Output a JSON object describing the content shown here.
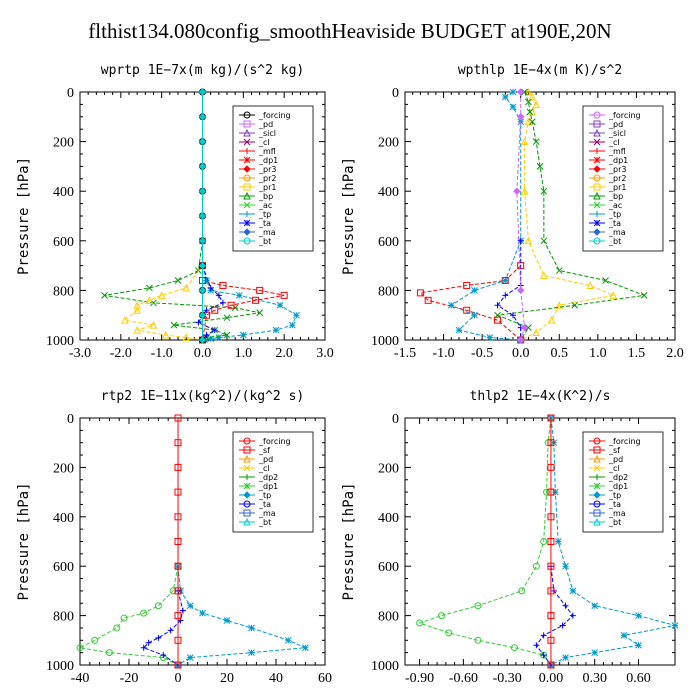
{
  "figure_title": "flthist134.080config_smoothHeaviside  BUDGET at190E,20N",
  "colors": {
    "black": "#000000",
    "violet": "#cc66ff",
    "purple": "#7f3fbf",
    "magenta": "#990066",
    "red": "#ff0000",
    "orange": "#ff9900",
    "yellow": "#ffcc00",
    "green": "#009900",
    "lightgreen": "#33cc33",
    "blue": "#0000ff",
    "teal": "#0099cc",
    "cyan": "#00cccc",
    "steel": "#3366cc",
    "darkred": "#cc0033",
    "lime": "#66cc00"
  },
  "chart_data": [
    {
      "id": "wprtp",
      "type": "line",
      "title": "wprtp  1E−7x(m kg)/(s^2 kg)",
      "ylabel": "Pressure [hPa]",
      "xlim": [
        -3.0,
        3.0
      ],
      "ylim": [
        1000,
        0
      ],
      "xticks": [
        "-3.0",
        "-2.0",
        "-1.0",
        "0.0",
        "1.0",
        "2.0",
        "3.0"
      ],
      "xtick_values": [
        -3,
        -2,
        -1,
        0,
        1,
        2,
        3
      ],
      "yticks": [
        "0",
        "200",
        "400",
        "600",
        "800",
        "1000"
      ],
      "ytick_values": [
        0,
        200,
        400,
        600,
        800,
        1000
      ],
      "legend": [
        "_forcing",
        "_pd",
        "_sicl",
        "_cl",
        "_mfl",
        "_dp1",
        "_pr3",
        "_pr2",
        "_pr1",
        "_bp",
        "_ac",
        "_tp",
        "_ta",
        "_ma",
        "_bt"
      ],
      "legend_colors": [
        "black",
        "violet",
        "purple",
        "magenta",
        "red",
        "red",
        "red",
        "orange",
        "yellow",
        "green",
        "lightgreen",
        "teal",
        "blue",
        "steel",
        "cyan"
      ],
      "series": [
        {
          "name": "_tp",
          "color": "teal",
          "marker": "star",
          "x": [
            0,
            0,
            0.1,
            0.2,
            0.9,
            1.9,
            2.3,
            2.2,
            1.8,
            1.0,
            0.4,
            0.2,
            0.05,
            0
          ],
          "y": [
            600,
            700,
            760,
            800,
            820,
            860,
            900,
            940,
            960,
            980,
            990,
            995,
            998,
            1000
          ]
        },
        {
          "name": "_bp",
          "color": "green",
          "marker": "x",
          "x": [
            0,
            -0.1,
            -0.6,
            -1.3,
            -2.4,
            -1.2,
            0.8,
            1.4,
            0.6,
            -0.7,
            0.3,
            0.6,
            0.1,
            0
          ],
          "y": [
            600,
            720,
            760,
            790,
            820,
            850,
            870,
            890,
            910,
            940,
            960,
            980,
            990,
            1000
          ]
        },
        {
          "name": "_pr1",
          "color": "yellow",
          "marker": "tri",
          "x": [
            0,
            -0.4,
            -1.0,
            -1.3,
            -1.6,
            -1.6,
            -1.9,
            -1.2,
            -1.6,
            -0.9,
            -0.4,
            0
          ],
          "y": [
            700,
            790,
            820,
            840,
            860,
            880,
            920,
            940,
            960,
            980,
            990,
            1000
          ]
        },
        {
          "name": "_pr3",
          "color": "red",
          "marker": "sq",
          "x": [
            0,
            0,
            0.5,
            1.4,
            2.0,
            1.3,
            0.7,
            0.3,
            0.1,
            0
          ],
          "y": [
            700,
            760,
            780,
            800,
            820,
            840,
            860,
            880,
            900,
            1000
          ]
        },
        {
          "name": "_ta",
          "color": "blue",
          "marker": "plus",
          "x": [
            0,
            0.2,
            0.4,
            0.5,
            0.1,
            0,
            -0.1,
            0.3,
            0.1,
            0
          ],
          "y": [
            700,
            790,
            820,
            850,
            880,
            900,
            930,
            960,
            980,
            1000
          ]
        },
        {
          "name": "_forcing",
          "color": "black",
          "marker": "circle",
          "x": [
            0,
            0,
            0,
            0,
            0,
            0,
            0,
            0,
            0,
            0,
            0
          ],
          "y": [
            0,
            100,
            200,
            300,
            400,
            500,
            600,
            700,
            800,
            900,
            1000
          ]
        },
        {
          "name": "_bt",
          "color": "cyan",
          "marker": "diamond",
          "x": [
            0,
            0,
            0,
            0,
            0,
            0,
            0,
            0,
            0,
            0,
            0
          ],
          "y": [
            0,
            100,
            200,
            300,
            400,
            500,
            600,
            700,
            800,
            900,
            1000
          ]
        }
      ]
    },
    {
      "id": "wpthlp",
      "type": "line",
      "title": "wpthlp  1E−4x(m K)/s^2",
      "ylabel": "Pressure [hPa]",
      "xlim": [
        -1.5,
        2.0
      ],
      "ylim": [
        1000,
        0
      ],
      "xticks": [
        "-1.5",
        "-1.0",
        "-0.5",
        "0.0",
        "0.5",
        "1.0",
        "1.5",
        "2.0"
      ],
      "xtick_values": [
        -1.5,
        -1.0,
        -0.5,
        0,
        0.5,
        1.0,
        1.5,
        2.0
      ],
      "yticks": [
        "0",
        "200",
        "400",
        "600",
        "800",
        "1000"
      ],
      "ytick_values": [
        0,
        200,
        400,
        600,
        800,
        1000
      ],
      "legend": [
        "_forcing",
        "_pd",
        "_sicl",
        "_cl",
        "_mfl",
        "_dp1",
        "_pr3",
        "_pr2",
        "_pr1",
        "_bp",
        "_ac",
        "_tp",
        "_ta",
        "_ma",
        "_bt"
      ],
      "legend_colors": [
        "violet",
        "purple",
        "purple",
        "magenta",
        "red",
        "red",
        "red",
        "orange",
        "yellow",
        "green",
        "lightgreen",
        "teal",
        "blue",
        "steel",
        "cyan"
      ],
      "series": [
        {
          "name": "_pr1",
          "color": "yellow",
          "marker": "tri",
          "x": [
            0.1,
            0.15,
            0.2,
            0.15,
            0.1,
            0.05,
            0.05,
            0.1,
            0.3,
            0.9,
            1.2,
            0.5,
            0.4,
            0.2,
            0
          ],
          "y": [
            0,
            20,
            50,
            80,
            120,
            200,
            400,
            600,
            740,
            780,
            820,
            860,
            920,
            970,
            1000
          ]
        },
        {
          "name": "_bp",
          "color": "green",
          "marker": "x",
          "x": [
            0.05,
            0.1,
            0.12,
            0.15,
            0.2,
            0.25,
            0.3,
            0.3,
            0.5,
            1.1,
            1.6,
            0.7,
            -0.3,
            0.1,
            0
          ],
          "y": [
            0,
            40,
            80,
            120,
            200,
            300,
            400,
            600,
            720,
            760,
            820,
            860,
            900,
            950,
            1000
          ]
        },
        {
          "name": "_pr3",
          "color": "red",
          "marker": "sq",
          "x": [
            0,
            -0.2,
            -0.7,
            -1.3,
            -1.2,
            -0.7,
            -0.3,
            0
          ],
          "y": [
            700,
            760,
            780,
            810,
            840,
            880,
            920,
            1000
          ]
        },
        {
          "name": "_tp",
          "color": "teal",
          "marker": "star",
          "x": [
            -0.1,
            -0.2,
            -0.1,
            0,
            0,
            -0.2,
            -0.6,
            -0.9,
            -0.6,
            -0.8,
            -0.4,
            0
          ],
          "y": [
            0,
            20,
            60,
            120,
            600,
            760,
            800,
            860,
            900,
            960,
            990,
            1000
          ]
        },
        {
          "name": "_ta",
          "color": "blue",
          "marker": "plus",
          "x": [
            0,
            0,
            -0.2,
            -0.3,
            -0.1,
            0,
            0
          ],
          "y": [
            600,
            780,
            820,
            860,
            900,
            950,
            1000
          ]
        },
        {
          "name": "_pd",
          "color": "violet",
          "marker": "diamond",
          "x": [
            0,
            0,
            -0.05,
            0,
            0.05,
            0
          ],
          "y": [
            0,
            100,
            400,
            800,
            950,
            1000
          ]
        }
      ]
    },
    {
      "id": "rtp2",
      "type": "line",
      "title": "rtp2  1E−11x(kg^2)/(kg^2 s)",
      "ylabel": "Pressure [hPa]",
      "xlim": [
        -40,
        60
      ],
      "ylim": [
        1000,
        0
      ],
      "xticks": [
        "-40",
        "-20",
        "0",
        "20",
        "40",
        "60"
      ],
      "xtick_values": [
        -40,
        -20,
        0,
        20,
        40,
        60
      ],
      "yticks": [
        "0",
        "200",
        "400",
        "600",
        "800",
        "1000"
      ],
      "ytick_values": [
        0,
        200,
        400,
        600,
        800,
        1000
      ],
      "legend": [
        "_forcing",
        "_sf",
        "_pd",
        "_cl",
        "_dp2",
        "_dp1",
        "_tp",
        "_ta",
        "_ma",
        "_bt"
      ],
      "legend_colors": [
        "red",
        "red",
        "orange",
        "yellow",
        "green",
        "lightgreen",
        "teal",
        "blue",
        "steel",
        "cyan"
      ],
      "series": [
        {
          "name": "_dp1",
          "color": "lightgreen",
          "marker": "circle",
          "x": [
            0,
            -2,
            -8,
            -14,
            -22,
            -25,
            -34,
            -40,
            -28,
            -6,
            0
          ],
          "y": [
            600,
            700,
            760,
            790,
            810,
            850,
            900,
            930,
            950,
            970,
            1000
          ]
        },
        {
          "name": "_tp",
          "color": "teal",
          "marker": "star",
          "x": [
            0,
            1,
            5,
            10,
            20,
            30,
            45,
            52,
            30,
            5,
            0
          ],
          "y": [
            600,
            700,
            760,
            790,
            820,
            850,
            900,
            930,
            950,
            970,
            1000
          ]
        },
        {
          "name": "_ta",
          "color": "blue",
          "marker": "plus",
          "x": [
            0,
            2,
            1,
            -3,
            -8,
            -12,
            -14,
            -6,
            0
          ],
          "y": [
            700,
            780,
            820,
            860,
            890,
            910,
            930,
            960,
            1000
          ]
        },
        {
          "name": "_forcing",
          "color": "red",
          "marker": "sq",
          "x": [
            0,
            0,
            0,
            0,
            0,
            0,
            0,
            0,
            0,
            0,
            0
          ],
          "y": [
            0,
            100,
            200,
            300,
            400,
            500,
            600,
            700,
            800,
            900,
            1000
          ]
        }
      ]
    },
    {
      "id": "thlp2",
      "type": "line",
      "title": "thlp2  1E−4x(K^2)/s",
      "ylabel": "Pressure [hPa]",
      "xlim": [
        -1.0,
        0.85
      ],
      "ylim": [
        1000,
        0
      ],
      "xticks": [
        "-0.90",
        "-0.60",
        "-0.30",
        "0.00",
        "0.30",
        "0.60"
      ],
      "xtick_values": [
        -0.9,
        -0.6,
        -0.3,
        0,
        0.3,
        0.6
      ],
      "yticks": [
        "0",
        "200",
        "400",
        "600",
        "800",
        "1000"
      ],
      "ytick_values": [
        0,
        200,
        400,
        600,
        800,
        1000
      ],
      "legend": [
        "_forcing",
        "_sf",
        "_pd",
        "_cl",
        "_dp2",
        "_dp1",
        "_tp",
        "_ta",
        "_ma",
        "_bt"
      ],
      "legend_colors": [
        "red",
        "red",
        "orange",
        "yellow",
        "green",
        "lightgreen",
        "teal",
        "blue",
        "steel",
        "cyan"
      ],
      "series": [
        {
          "name": "_dp1",
          "color": "lightgreen",
          "marker": "circle",
          "x": [
            0,
            -0.02,
            -0.03,
            -0.05,
            -0.1,
            -0.2,
            -0.5,
            -0.75,
            -0.9,
            -0.7,
            -0.5,
            -0.25,
            -0.05,
            0
          ],
          "y": [
            0,
            100,
            300,
            500,
            600,
            700,
            760,
            800,
            830,
            870,
            900,
            930,
            960,
            1000
          ]
        },
        {
          "name": "_tp",
          "color": "teal",
          "marker": "star",
          "x": [
            0,
            0.02,
            0.03,
            0.05,
            0.1,
            0.15,
            0.3,
            0.6,
            0.85,
            0.5,
            0.6,
            0.3,
            0.1,
            0
          ],
          "y": [
            0,
            100,
            300,
            500,
            600,
            700,
            760,
            800,
            840,
            880,
            920,
            950,
            970,
            1000
          ]
        },
        {
          "name": "_ta",
          "color": "blue",
          "marker": "plus",
          "x": [
            0,
            0.02,
            0.1,
            0.15,
            0.08,
            -0.05,
            -0.1,
            -0.05,
            0
          ],
          "y": [
            600,
            700,
            760,
            800,
            840,
            880,
            920,
            960,
            1000
          ]
        },
        {
          "name": "_forcing",
          "color": "red",
          "marker": "sq",
          "x": [
            0,
            0,
            0,
            0,
            0,
            0,
            0,
            0,
            0,
            0,
            0
          ],
          "y": [
            0,
            100,
            200,
            300,
            400,
            500,
            600,
            700,
            800,
            900,
            1000
          ]
        }
      ]
    }
  ]
}
